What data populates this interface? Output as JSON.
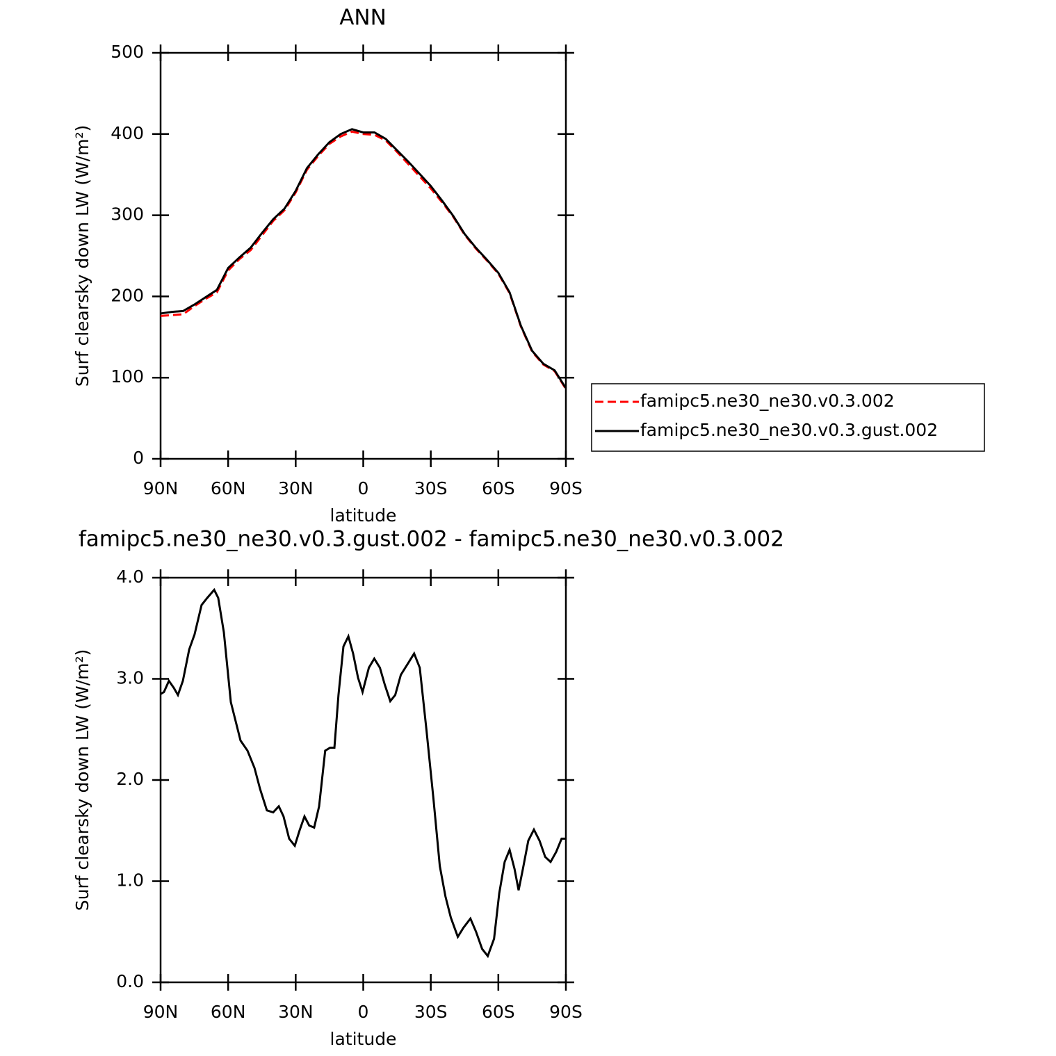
{
  "chart_data": [
    {
      "type": "line",
      "title": "ANN",
      "xlabel": "latitude",
      "ylabel": "Surf clearsky down LW (W/m²)",
      "x": [
        90,
        85,
        80,
        75,
        70,
        65,
        60,
        55,
        50,
        45,
        40,
        35,
        30,
        25,
        20,
        15,
        10,
        5,
        0,
        -5,
        -10,
        -15,
        -20,
        -25,
        -30,
        -35,
        -40,
        -45,
        -50,
        -55,
        -60,
        -65,
        -70,
        -75,
        -80,
        -85,
        -90
      ],
      "series": [
        {
          "name": "famipc5.ne30_ne30.v0.3.002",
          "color": "#ff0000",
          "line_style": "dashed",
          "values": [
            176,
            177,
            178,
            188,
            197,
            205,
            232,
            246,
            257,
            275,
            293,
            306,
            328,
            356,
            373,
            388,
            397,
            403,
            400,
            399,
            392,
            378,
            363,
            348,
            333,
            316,
            298,
            276,
            259,
            244,
            228,
            204,
            163,
            132,
            116,
            108,
            86
          ]
        },
        {
          "name": "famipc5.ne30_ne30.v0.3.gust.002",
          "color": "#000000",
          "line_style": "solid",
          "values": [
            179,
            181,
            182,
            190,
            199,
            208,
            235,
            248,
            260,
            278,
            295,
            308,
            330,
            358,
            375,
            390,
            400,
            406,
            402,
            402,
            394,
            380,
            366,
            351,
            336,
            318,
            299,
            277,
            260,
            245,
            229,
            205,
            164,
            133,
            117,
            109,
            87
          ]
        }
      ],
      "xlim": [
        90,
        -90
      ],
      "xticks": [
        {
          "value": 90,
          "label": "90N"
        },
        {
          "value": 60,
          "label": "60N"
        },
        {
          "value": 30,
          "label": "30N"
        },
        0,
        {
          "value": -30,
          "label": "30S"
        },
        {
          "value": -60,
          "label": "60S"
        },
        {
          "value": -90,
          "label": "90S"
        }
      ],
      "ylim": [
        0,
        500
      ],
      "yticks": [
        0,
        100,
        200,
        300,
        400,
        500
      ],
      "legend": "right"
    },
    {
      "type": "line",
      "title": "famipc5.ne30_ne30.v0.3.gust.002 - famipc5.ne30_ne30.v0.3.002",
      "xlabel": "latitude",
      "ylabel": "Surf clearsky down LW (W/m²)",
      "x": [
        90,
        88.5,
        86.3,
        84.1,
        82.3,
        80.1,
        77.3,
        74.9,
        71.8,
        69.3,
        66.2,
        64.4,
        61.9,
        58.8,
        54.5,
        51.4,
        48.3,
        45.8,
        42.8,
        40,
        37.5,
        35.4,
        32.9,
        30.4,
        28.3,
        26.1,
        24,
        21.8,
        19.6,
        16.9,
        14.7,
        12.8,
        11,
        8.8,
        6.6,
        4.5,
        2.3,
        0.3,
        -2.5,
        -4.9,
        -7.4,
        -9.6,
        -12,
        -14.2,
        -16.7,
        -19.8,
        -22.6,
        -25.1,
        -28.1,
        -31.2,
        -34,
        -36.5,
        -38.9,
        -42,
        -44.5,
        -47.6,
        -50.1,
        -52.8,
        -55.3,
        -58.1,
        -60.4,
        -62.8,
        -65,
        -67.2,
        -69,
        -70.9,
        -73.3,
        -75.8,
        -78.3,
        -80.8,
        -83.2,
        -85.7,
        -88.1,
        -90
      ],
      "values": [
        2.85,
        2.87,
        2.98,
        2.91,
        2.84,
        2.98,
        3.29,
        3.44,
        3.73,
        3.8,
        3.88,
        3.8,
        3.46,
        2.77,
        2.39,
        2.29,
        2.12,
        1.91,
        1.7,
        1.68,
        1.74,
        1.64,
        1.42,
        1.35,
        1.5,
        1.64,
        1.55,
        1.53,
        1.74,
        2.29,
        2.32,
        2.32,
        2.84,
        3.32,
        3.42,
        3.25,
        3.01,
        2.87,
        3.11,
        3.2,
        3.11,
        2.94,
        2.78,
        2.84,
        3.04,
        3.15,
        3.25,
        3.11,
        2.49,
        1.81,
        1.15,
        0.85,
        0.64,
        0.45,
        0.54,
        0.63,
        0.5,
        0.33,
        0.26,
        0.43,
        0.88,
        1.19,
        1.31,
        1.12,
        0.91,
        1.12,
        1.4,
        1.51,
        1.4,
        1.24,
        1.19,
        1.29,
        1.42,
        1.42
      ],
      "color": "#000000",
      "xlim": [
        90,
        -90
      ],
      "xticks": [
        {
          "value": 90,
          "label": "90N"
        },
        {
          "value": 60,
          "label": "60N"
        },
        {
          "value": 30,
          "label": "30N"
        },
        0,
        {
          "value": -30,
          "label": "30S"
        },
        {
          "value": -60,
          "label": "60S"
        },
        {
          "value": -90,
          "label": "90S"
        }
      ],
      "ylim": [
        0,
        4
      ],
      "yticks": [
        {
          "value": 0,
          "label": "0.0"
        },
        {
          "value": 1,
          "label": "1.0"
        },
        {
          "value": 2,
          "label": "2.0"
        },
        {
          "value": 3,
          "label": "3.0"
        },
        {
          "value": 4,
          "label": "4.0"
        }
      ]
    }
  ]
}
